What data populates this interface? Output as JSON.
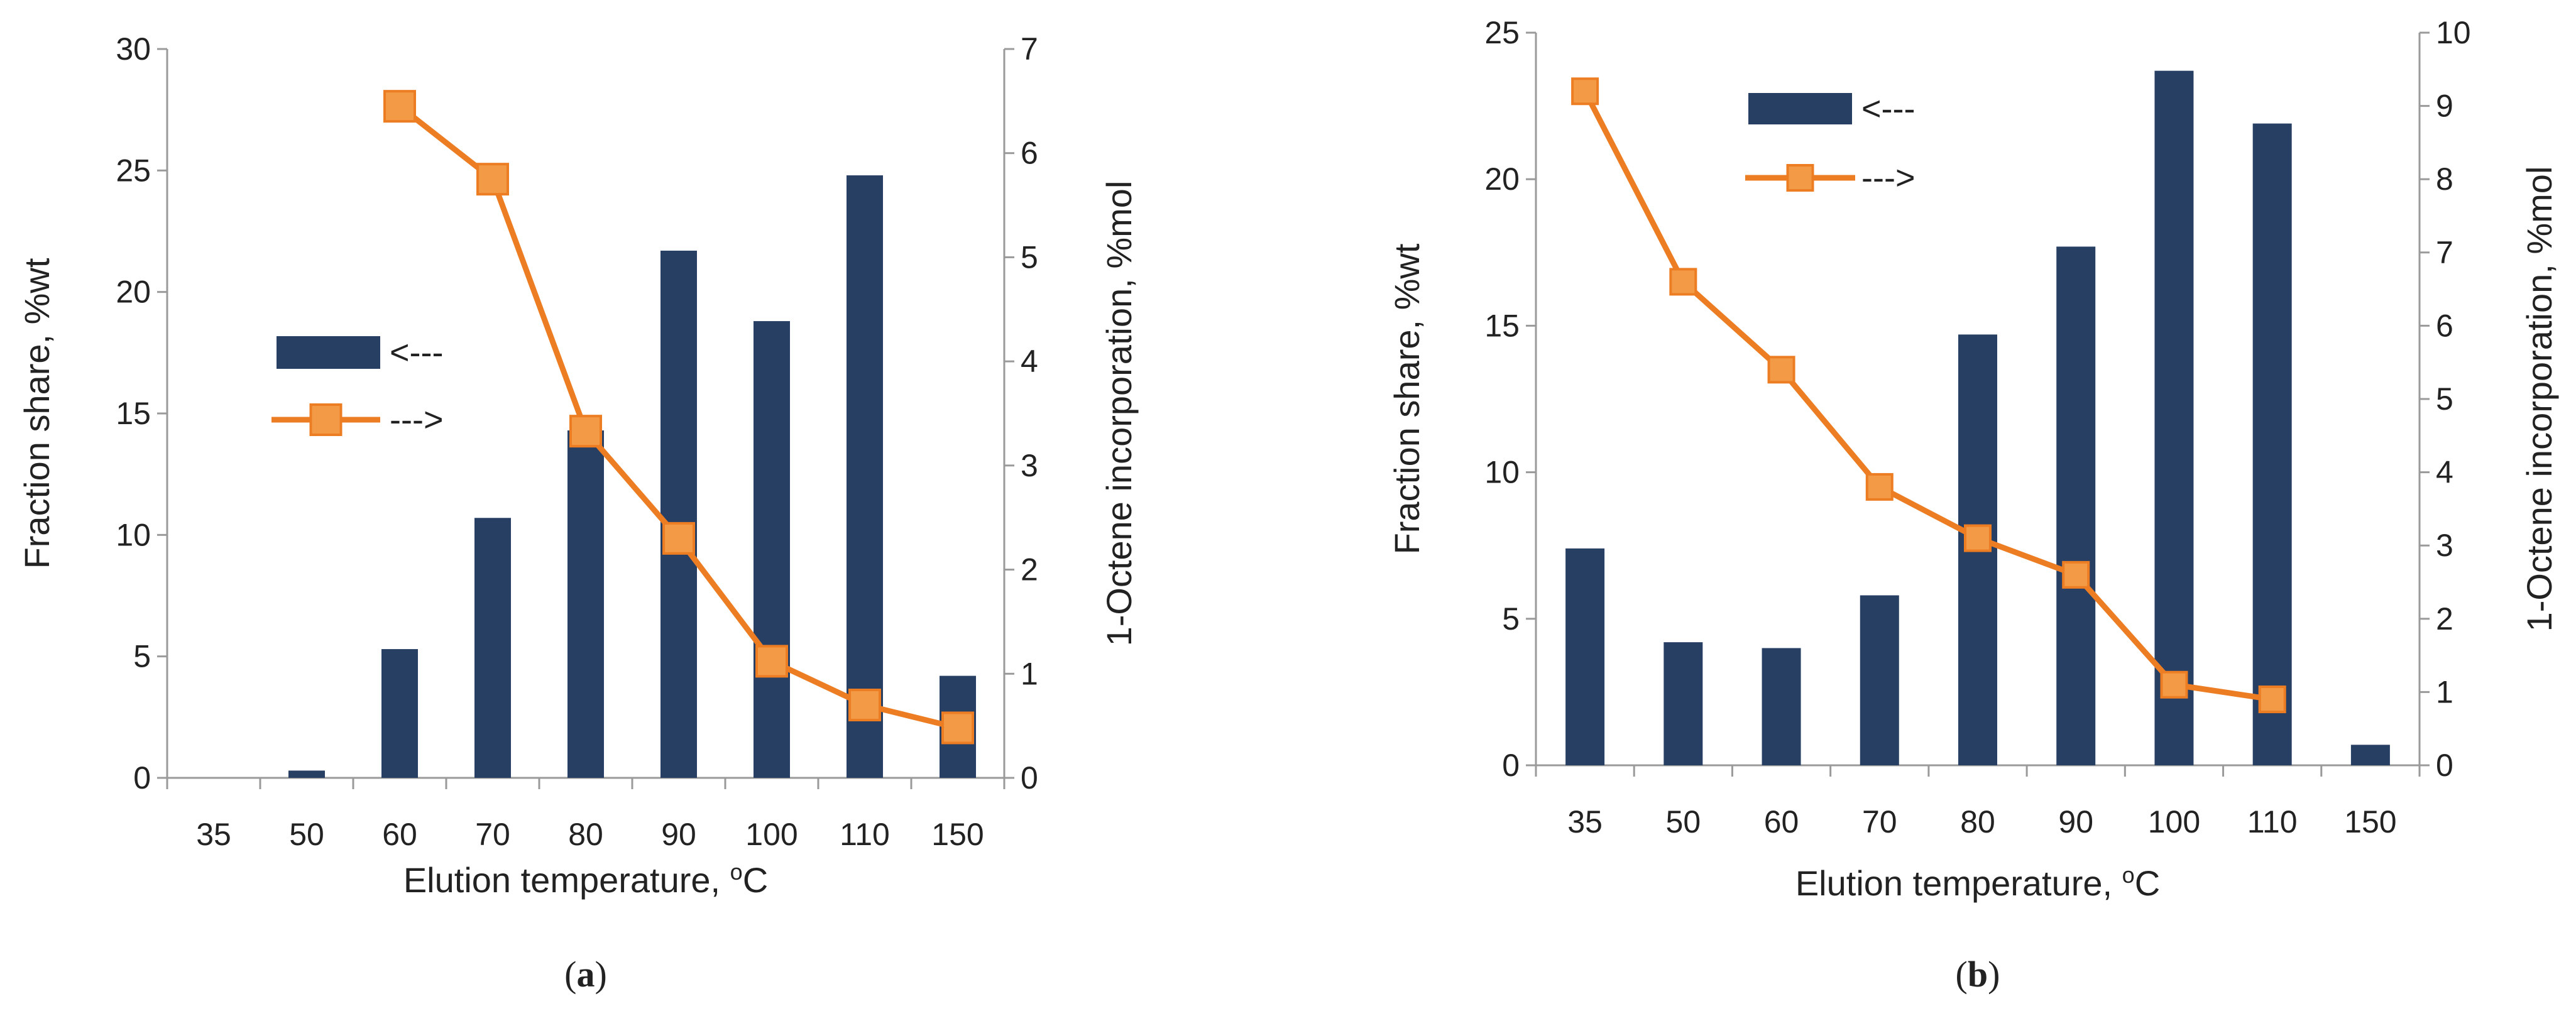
{
  "colors": {
    "bar": "#283f64",
    "line": "#ed7d23",
    "marker": "#ed7d23",
    "marker_fill": "#f29a45",
    "axis": "#9a9a9a"
  },
  "chart_data": [
    {
      "panel": "a",
      "caption_letter": "a",
      "type": "bar",
      "categories": [
        "35",
        "50",
        "60",
        "70",
        "80",
        "90",
        "100",
        "110",
        "150"
      ],
      "xlabel": "Elution temperature, ",
      "xlabel_sup": "o",
      "xlabel_unit": "C",
      "ylabel": "Fraction share, %wt",
      "y2label": "1-Octene incorporation, %mol",
      "ylim": [
        0,
        30
      ],
      "yticks": [
        0,
        5,
        10,
        15,
        20,
        25,
        30
      ],
      "y2lim": [
        0,
        7
      ],
      "y2ticks": [
        0,
        1,
        2,
        3,
        4,
        5,
        6,
        7
      ],
      "series": [
        {
          "name": "<---",
          "type": "bar",
          "axis": "left",
          "values": [
            0,
            0.3,
            5.3,
            10.7,
            14.3,
            21.7,
            18.8,
            24.8,
            4.2
          ]
        },
        {
          "name": "--->",
          "type": "line",
          "axis": "right",
          "values": [
            null,
            null,
            6.45,
            5.75,
            3.33,
            2.3,
            1.12,
            0.7,
            0.48
          ]
        }
      ],
      "legend": [
        {
          "label": "<---",
          "kind": "bar"
        },
        {
          "label": "--->",
          "kind": "line"
        }
      ]
    },
    {
      "panel": "b",
      "caption_letter": "b",
      "type": "bar",
      "categories": [
        "35",
        "50",
        "60",
        "70",
        "80",
        "90",
        "100",
        "110",
        "150"
      ],
      "xlabel": "Elution temperature, ",
      "xlabel_sup": "o",
      "xlabel_unit": "C",
      "ylabel": "Fraction share, %wt",
      "y2label": "1-Octene incorporation, %mol",
      "ylim": [
        0,
        25
      ],
      "yticks": [
        0,
        5,
        10,
        15,
        20,
        25
      ],
      "y2lim": [
        0,
        10
      ],
      "y2ticks": [
        0,
        1,
        2,
        3,
        4,
        5,
        6,
        7,
        8,
        9,
        10
      ],
      "series": [
        {
          "name": "<---",
          "type": "bar",
          "axis": "left",
          "values": [
            7.4,
            4.2,
            4.0,
            5.8,
            14.7,
            17.7,
            23.7,
            21.9,
            0.7
          ]
        },
        {
          "name": "--->",
          "type": "line",
          "axis": "right",
          "values": [
            9.2,
            6.6,
            5.4,
            3.8,
            3.1,
            2.6,
            1.1,
            0.9,
            null
          ]
        }
      ],
      "legend": [
        {
          "label": "<---",
          "kind": "bar"
        },
        {
          "label": "--->",
          "kind": "line"
        }
      ]
    }
  ]
}
